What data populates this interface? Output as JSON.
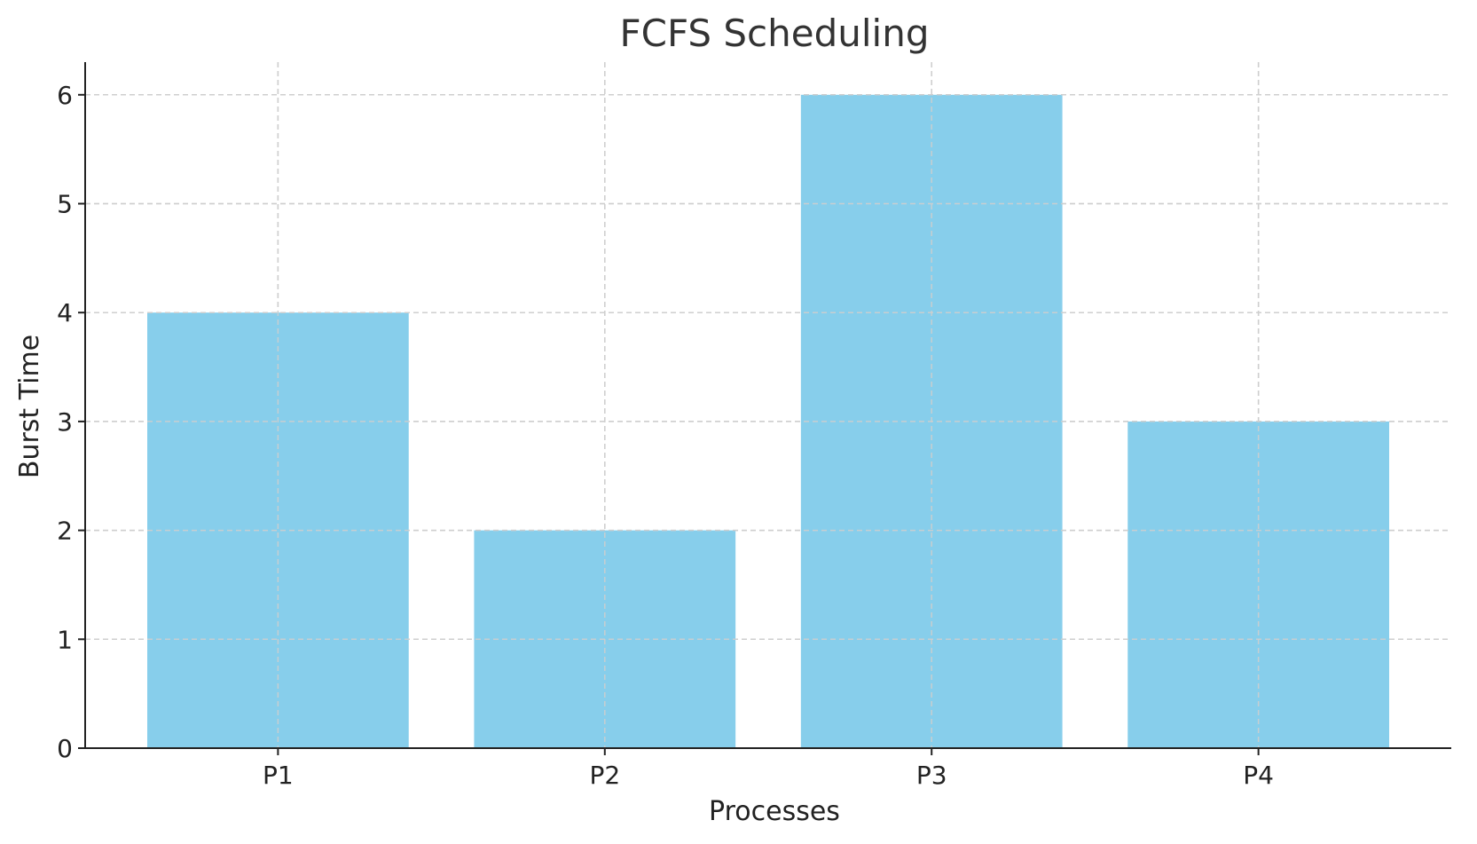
{
  "chart_data": {
    "type": "bar",
    "title": "FCFS Scheduling",
    "xlabel": "Processes",
    "ylabel": "Burst Time",
    "categories": [
      "P1",
      "P2",
      "P3",
      "P4"
    ],
    "values": [
      4,
      2,
      6,
      3
    ],
    "ylim": [
      0,
      6.3
    ],
    "yticks": [
      0,
      1,
      2,
      3,
      4,
      5,
      6
    ],
    "grid": true,
    "grid_style": "dashed",
    "legend": "none",
    "colors": {
      "bar": "#87CEEB",
      "grid": "#cfcfcf",
      "axis": "#222222",
      "text": "#333333"
    }
  }
}
